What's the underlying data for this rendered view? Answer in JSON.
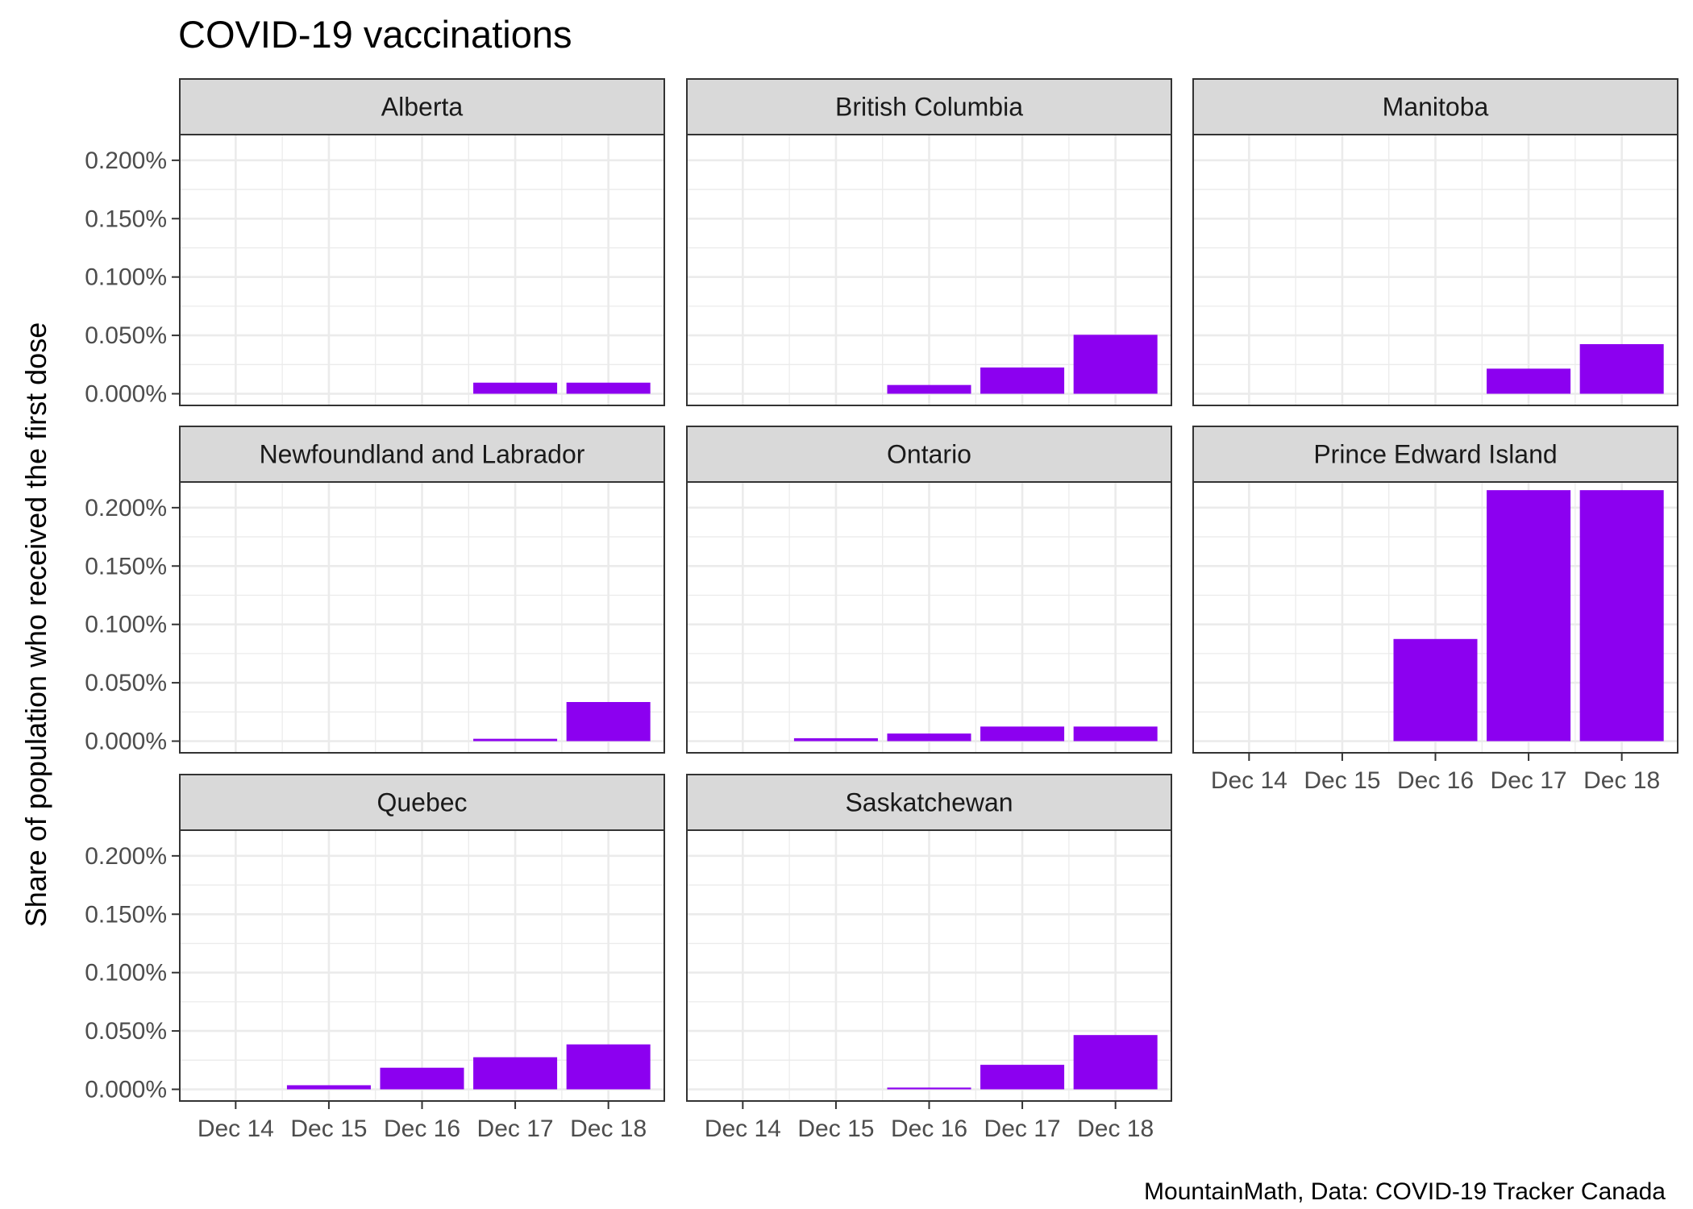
{
  "chart_data": {
    "type": "bar",
    "title": "COVID-19 vaccinations",
    "ylabel": "Share of population who received the first dose",
    "xlabel": "",
    "caption": "MountainMath, Data: COVID-19 Tracker Canada",
    "categories": [
      "Dec 14",
      "Dec 15",
      "Dec 16",
      "Dec 17",
      "Dec 18"
    ],
    "yticks": [
      0,
      0.05,
      0.1,
      0.15,
      0.2
    ],
    "ytick_labels": [
      "0.000%",
      "0.050%",
      "0.100%",
      "0.150%",
      "0.200%"
    ],
    "ylim": [
      -0.01,
      0.222
    ],
    "y_unit": "percent",
    "grid": true,
    "facet_layout": "3 columns, shared axes",
    "bar_color": "#8c00f0",
    "series": [
      {
        "name": "Alberta",
        "values": [
          0,
          0,
          0,
          0.0095,
          0.0095
        ]
      },
      {
        "name": "British Columbia",
        "values": [
          0,
          0,
          0.0075,
          0.0225,
          0.0505
        ]
      },
      {
        "name": "Manitoba",
        "values": [
          0,
          0,
          0,
          0.0215,
          0.0425
        ]
      },
      {
        "name": "Newfoundland and Labrador",
        "values": [
          0,
          0,
          0,
          0.002,
          0.0335
        ]
      },
      {
        "name": "Ontario",
        "values": [
          0,
          0.0025,
          0.0065,
          0.0125,
          0.0125
        ]
      },
      {
        "name": "Prince Edward Island",
        "values": [
          0,
          0,
          0.0875,
          0.215,
          0.215
        ]
      },
      {
        "name": "Quebec",
        "values": [
          0,
          0.0035,
          0.0185,
          0.0275,
          0.0385
        ]
      },
      {
        "name": "Saskatchewan",
        "values": [
          0,
          0,
          0.0015,
          0.021,
          0.0465
        ]
      }
    ]
  }
}
